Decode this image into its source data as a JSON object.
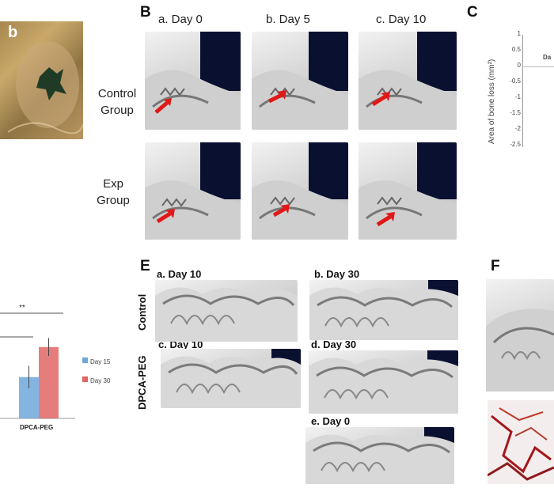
{
  "panels": {
    "b_photo": {
      "letter": "b"
    },
    "B": {
      "letter": "B",
      "days": [
        "a.  Day 0",
        "b.  Day 5",
        "c.  Day 10"
      ],
      "rows": [
        {
          "line1": "Control",
          "line2": "Group"
        },
        {
          "line1": "Exp",
          "line2": "Group"
        }
      ]
    },
    "C": {
      "letter": "C",
      "ylabel": "Area of bone loss (mm²)",
      "yticks": [
        "1",
        "0.5",
        "0",
        "-0.5",
        "-1",
        "-1.5",
        "-2",
        "-2.5"
      ],
      "partial_label": "Da"
    },
    "D_chart": {
      "significance": "**",
      "legend": [
        "Day 15",
        "Day 30"
      ],
      "category": "DPCA-PEG",
      "colors": {
        "day15": "#6fa8dc",
        "day30": "#e06666"
      }
    },
    "E": {
      "letter": "E",
      "days": [
        "a. Day 10",
        "b. Day 30",
        "c. Day 10",
        "d. Day 30",
        "e. Day 0"
      ],
      "rows": [
        "Control",
        "DPCA-PEG"
      ]
    },
    "F": {
      "letter": "F"
    }
  },
  "chart_data": {
    "type": "bar",
    "categories": [
      "DPCA-PEG"
    ],
    "series": [
      {
        "name": "Day 15",
        "values": [
          0.55
        ],
        "error": [
          0.15
        ]
      },
      {
        "name": "Day 30",
        "values": [
          0.95
        ],
        "error": [
          0.12
        ]
      }
    ],
    "annotations": [
      "**"
    ]
  }
}
